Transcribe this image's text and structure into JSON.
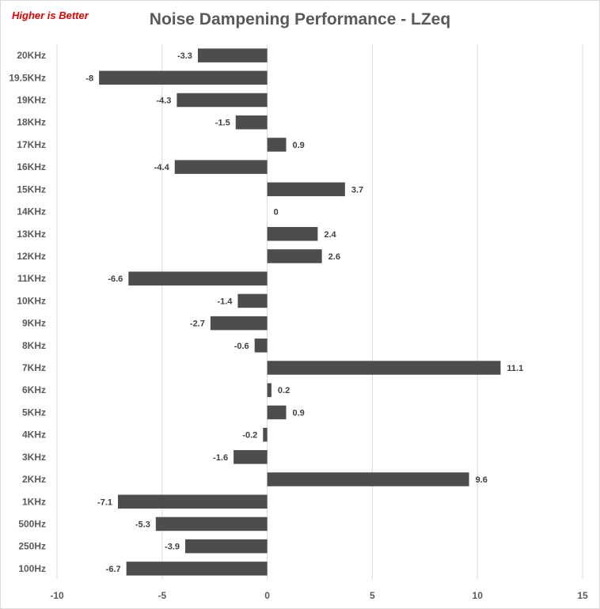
{
  "note": "Higher is Better",
  "colors": {
    "bar": "#4d4d4d",
    "grid": "#d9d9d9",
    "note": "#e00000",
    "text": "#595959"
  },
  "chart_data": {
    "type": "bar",
    "orientation": "horizontal",
    "title": "Noise Dampening Performance - LZeq",
    "categories": [
      "20KHz",
      "19.5KHz",
      "19KHz",
      "18KHz",
      "17KHz",
      "16KHz",
      "15KHz",
      "14KHz",
      "13KHz",
      "12KHz",
      "11KHz",
      "10KHz",
      "9KHz",
      "8KHz",
      "7KHz",
      "6KHz",
      "5KHz",
      "4KHz",
      "3KHz",
      "2KHz",
      "1KHz",
      "500Hz",
      "250Hz",
      "100Hz"
    ],
    "values": [
      -3.3,
      -8,
      -4.3,
      -1.5,
      0.9,
      -4.4,
      3.7,
      0,
      2.4,
      2.6,
      -6.6,
      -1.4,
      -2.7,
      -0.6,
      11.1,
      0.2,
      0.9,
      -0.2,
      -1.6,
      9.6,
      -7.1,
      -5.3,
      -3.9,
      -6.7
    ],
    "value_labels": [
      "-3.3",
      "-8",
      "-4.3",
      "-1.5",
      "0.9",
      "-4.4",
      "3.7",
      "0",
      "2.4",
      "2.6",
      "-6.6",
      "-1.4",
      "-2.7",
      "-0.6",
      "11.1",
      "0.2",
      "0.9",
      "-0.2",
      "-1.6",
      "9.6",
      "-7.1",
      "-5.3",
      "-3.9",
      "-6.7"
    ],
    "xlim": [
      -10,
      15
    ],
    "xticks": [
      "-10",
      "-5",
      "0",
      "5",
      "10",
      "15"
    ],
    "grid": "vertical",
    "legend": "none"
  }
}
